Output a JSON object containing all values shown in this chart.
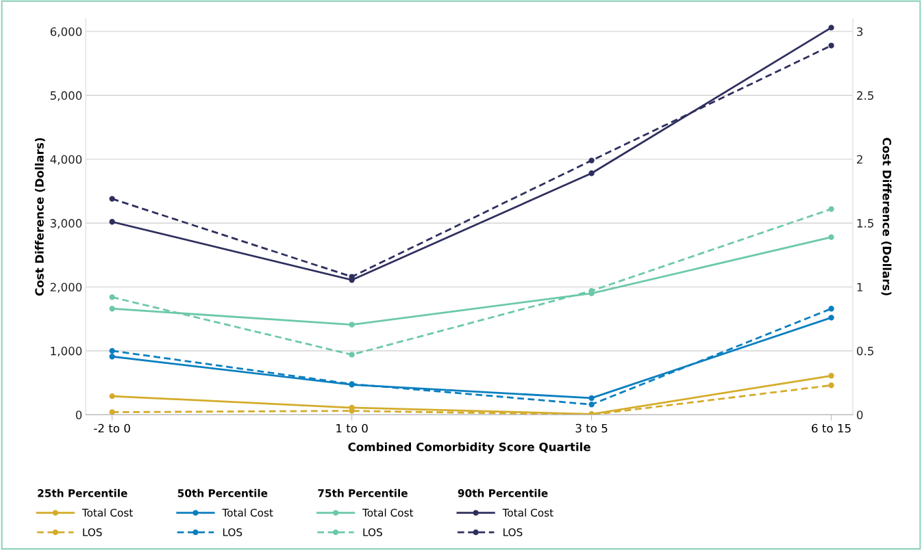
{
  "chart_data": {
    "type": "line",
    "xlabel": "Combined Comorbidity Score Quartile",
    "ylabel": "Cost Difference (Dollars)",
    "y2label": "Cost Difference (Dollars)",
    "categories": [
      "-2 to 0",
      "1 to 0",
      "3 to 5",
      "6 to 15"
    ],
    "ylim": [
      0,
      6200
    ],
    "yticks": [
      {
        "value": 0,
        "label": "0"
      },
      {
        "value": 1000,
        "label": "1,000"
      },
      {
        "value": 2000,
        "label": "2,000"
      },
      {
        "value": 3000,
        "label": "3,000"
      },
      {
        "value": 4000,
        "label": "4,000"
      },
      {
        "value": 5000,
        "label": "5,000"
      },
      {
        "value": 6000,
        "label": "6,000"
      }
    ],
    "y2lim": [
      0,
      3.1
    ],
    "y2ticks": [
      0,
      0.5,
      1,
      1.5,
      2,
      2.5,
      3
    ],
    "grid": "y",
    "legend": "bottom",
    "marker": "circle",
    "legend_title": [
      "25th Percentile",
      "50th Percentile",
      "75th Percentile",
      "90th Percentile"
    ],
    "series": [
      {
        "name": "Total Cost",
        "color": "#d4ac2b",
        "line_style": "solid",
        "values": [
          290,
          110,
          10,
          610
        ]
      },
      {
        "name": "LOS",
        "color": "#d4ac2b",
        "line_style": "dashed",
        "axis": "y2",
        "values": [
          0.02,
          0.03,
          0.0,
          0.23
        ]
      },
      {
        "name": "Total Cost",
        "color": "#0a7fc0",
        "line_style": "solid",
        "values": [
          910,
          470,
          260,
          1520
        ]
      },
      {
        "name": "LOS",
        "color": "#0a7fc0",
        "line_style": "dashed",
        "axis": "y2",
        "values": [
          0.5,
          0.24,
          0.08,
          0.83
        ]
      },
      {
        "name": "Total Cost",
        "color": "#6cc9a7",
        "line_style": "solid",
        "values": [
          1660,
          1410,
          1900,
          2780
        ]
      },
      {
        "name": "LOS",
        "color": "#6cc9a7",
        "line_style": "dashed",
        "axis": "y2",
        "values": [
          0.92,
          0.47,
          0.97,
          1.61
        ]
      },
      {
        "name": "Total Cost",
        "color": "#2e2f5e",
        "line_style": "solid",
        "values": [
          3020,
          2110,
          3780,
          6060
        ]
      },
      {
        "name": "LOS",
        "color": "#2e2f5e",
        "line_style": "dashed",
        "axis": "y2",
        "values": [
          1.69,
          1.08,
          1.99,
          2.89
        ]
      }
    ]
  }
}
